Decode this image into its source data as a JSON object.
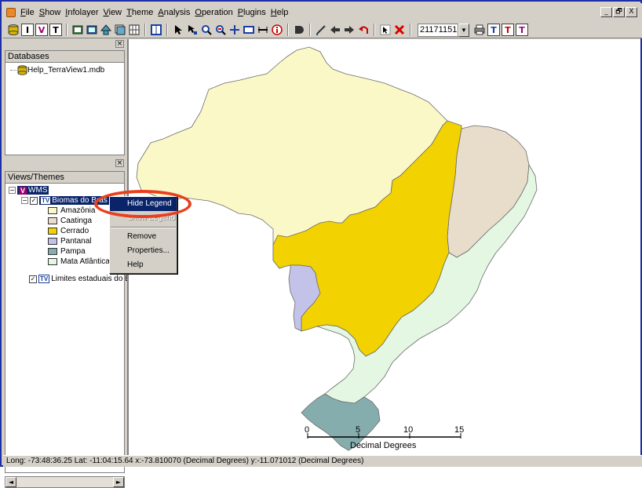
{
  "menubar": {
    "items": [
      "File",
      "Show",
      "Infolayer",
      "View",
      "Theme",
      "Analysis",
      "Operation",
      "Plugins",
      "Help"
    ],
    "window_controls": [
      "_",
      "🗗",
      "X"
    ]
  },
  "toolbar": {
    "scale_value": "21171151",
    "text_tools": [
      "T",
      "T",
      "T"
    ]
  },
  "databases": {
    "header": "Databases",
    "items": [
      {
        "label": "Help_TerraView1.mdb"
      }
    ]
  },
  "views_themes": {
    "header": "Views/Themes",
    "view": "WMS",
    "theme_biomas": "Biomas do Bras",
    "theme_limites": "Limites estaduais do Bra"
  },
  "legend": [
    {
      "label": "Amazônia",
      "color": "#fbf8c8"
    },
    {
      "label": "Caatinga",
      "color": "#e8dccb"
    },
    {
      "label": "Cerrado",
      "color": "#f2d200"
    },
    {
      "label": "Pantanal",
      "color": "#c3c3ea"
    },
    {
      "label": "Pampa",
      "color": "#86adad"
    },
    {
      "label": "Mata Atlântica",
      "color": "#e3f7e3"
    }
  ],
  "context_menu": {
    "items": [
      "Hide Legend",
      "Show Legend",
      "Remove",
      "Properties...",
      "Help"
    ]
  },
  "map": {
    "scalebar_ticks": [
      "0",
      "5",
      "10",
      "15"
    ],
    "scalebar_unit": "Decimal Degrees"
  },
  "status": {
    "text": "Long: -73:48:36.25 Lat: -11:04:15.64  x:-73.810070 (Decimal Degrees)  y:-11.071012 (Decimal Degrees)"
  }
}
